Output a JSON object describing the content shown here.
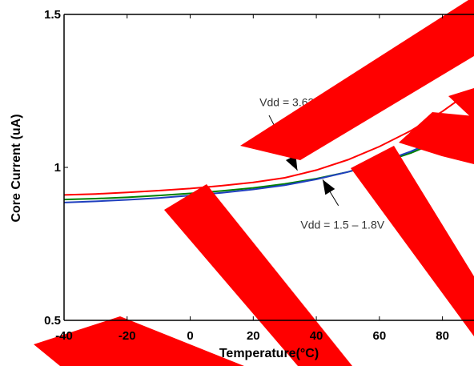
{
  "chart_data": {
    "type": "line",
    "title": "",
    "xlabel": "Temperature(°C)",
    "ylabel": "Core Current (uA)",
    "xlim": [
      -40,
      85
    ],
    "ylim": [
      0.5,
      1.5
    ],
    "xticks": [
      -40,
      -20,
      0,
      20,
      40,
      60,
      80
    ],
    "xtick_labels": [
      "-40",
      "-20",
      "0",
      "20",
      "40",
      "60",
      "80"
    ],
    "yticks": [
      0.5,
      1,
      1.5
    ],
    "ytick_labels": [
      "0.5",
      "1",
      "1.5"
    ],
    "grid": false,
    "series": [
      {
        "color": "#ff0000",
        "x": [
          -40,
          -30,
          -20,
          -10,
          0,
          10,
          20,
          30,
          40,
          50,
          60,
          70,
          80,
          85
        ],
        "y": [
          0.91,
          0.913,
          0.918,
          0.924,
          0.931,
          0.94,
          0.951,
          0.966,
          0.991,
          1.025,
          1.068,
          1.12,
          1.183,
          1.22
        ]
      },
      {
        "color": "#008000",
        "x": [
          -40,
          -30,
          -20,
          -10,
          0,
          10,
          20,
          30,
          40,
          50,
          60,
          70,
          80,
          85
        ],
        "y": [
          0.895,
          0.898,
          0.902,
          0.908,
          0.915,
          0.923,
          0.933,
          0.946,
          0.963,
          0.985,
          1.013,
          1.047,
          1.09,
          1.115
        ]
      },
      {
        "color": "#1f3fbf",
        "x": [
          -40,
          -30,
          -20,
          -10,
          0,
          10,
          20,
          30,
          40,
          50,
          60,
          70,
          80,
          85
        ],
        "y": [
          0.885,
          0.889,
          0.894,
          0.9,
          0.908,
          0.917,
          0.928,
          0.942,
          0.961,
          0.985,
          1.015,
          1.052,
          1.097,
          1.124
        ]
      }
    ],
    "annotations": [
      {
        "text": "Vdd = 3.63V",
        "x": 22,
        "y": 1.2,
        "arrow_to": [
          34,
          0.99
        ],
        "arrow_from": [
          25,
          1.17
        ]
      },
      {
        "text": "Vdd = 1.5 – 1.8V",
        "x": 35,
        "y": 0.8,
        "arrow_to": [
          42,
          0.96
        ],
        "arrow_from": [
          47,
          0.875
        ]
      }
    ]
  },
  "watermark": {
    "color": "#ff0000"
  }
}
